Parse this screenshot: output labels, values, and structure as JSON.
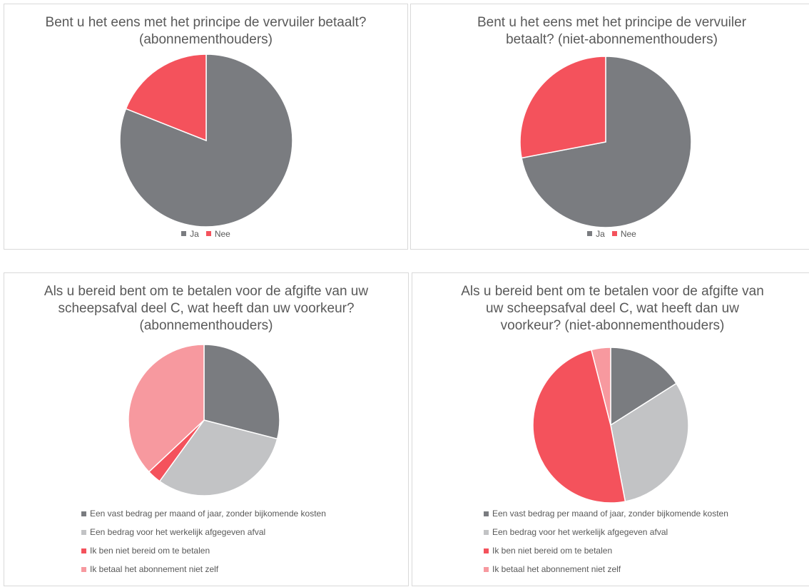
{
  "chart_data": [
    {
      "type": "pie",
      "title": "Bent u het eens met het principe de vervuiler betaalt? (abonnementhouders)",
      "categories": [
        "Ja",
        "Nee"
      ],
      "values": [
        81,
        19
      ],
      "colors": [
        "#7a7c80",
        "#f4525c"
      ],
      "legend": "bottom"
    },
    {
      "type": "pie",
      "title": "Bent u het eens met het principe de vervuiler betaalt? (niet-abonnementhouders)",
      "categories": [
        "Ja",
        "Nee"
      ],
      "values": [
        72,
        28
      ],
      "colors": [
        "#7a7c80",
        "#f4525c"
      ],
      "legend": "bottom"
    },
    {
      "type": "pie",
      "title": "Als u bereid bent om te betalen voor de afgifte van uw scheepsafval deel C, wat heeft dan uw voorkeur? (abonnementhouders)",
      "categories": [
        "Een vast bedrag per maand of jaar, zonder bijkomende kosten",
        "Een bedrag voor het werkelijk afgegeven afval",
        "Ik ben niet bereid om te betalen",
        "Ik betaal het abonnement niet zelf"
      ],
      "values": [
        29,
        31,
        3,
        37
      ],
      "colors": [
        "#7a7c80",
        "#c2c3c5",
        "#f4525c",
        "#f7999f"
      ],
      "legend": "bottom"
    },
    {
      "type": "pie",
      "title": "Als u bereid bent om te betalen voor de afgifte van uw scheepsafval deel C, wat heeft dan uw voorkeur? (niet-abonnementhouders)",
      "categories": [
        "Een vast bedrag per maand of jaar, zonder bijkomende kosten",
        "Een bedrag voor het werkelijk afgegeven afval",
        "Ik ben niet bereid om te betalen",
        "Ik betaal het abonnement niet zelf"
      ],
      "values": [
        16,
        31,
        49,
        4
      ],
      "colors": [
        "#7a7c80",
        "#c2c3c5",
        "#f4525c",
        "#f7999f"
      ],
      "legend": "bottom"
    }
  ]
}
